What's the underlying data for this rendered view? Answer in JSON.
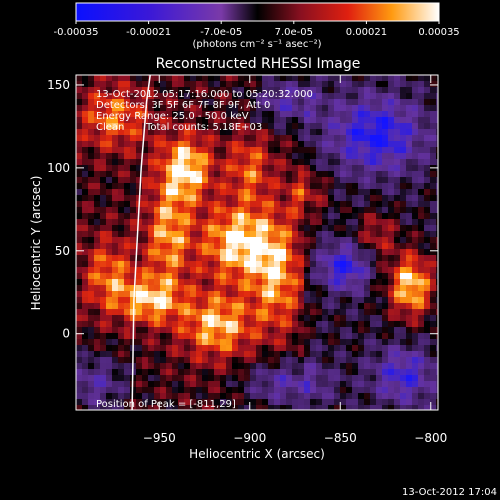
{
  "colorbar": {
    "ticks": [
      "-0.00035",
      "-0.00021",
      "-7.0e-05",
      "7.0e-05",
      "0.00021",
      "0.00035"
    ],
    "tick_values": [
      -0.00035,
      -0.00021,
      -7e-05,
      7e-05,
      0.00021,
      0.00035
    ],
    "range": [
      -0.00035,
      0.00035
    ],
    "unit_label": "(photons cm⁻² s⁻¹ asec⁻²)"
  },
  "image_info": {
    "time_range": "13-Oct-2012 05:17:16.000 to 05:20:32.000",
    "detectors": "Detectors: 3F 5F 6F 7F 8F 9F, Att 0",
    "energy": "Energy Range: 25.0 - 50.0 keV",
    "method": "Clean",
    "counts": "Total counts: 5.18E+03",
    "peak": "Position of Peak = [-811,29]"
  },
  "footer": {
    "timestamp": "13-Oct-2012 17:04"
  },
  "colors": {
    "low": "#1a10ff",
    "mid_low": "#5e2ea0",
    "zero": "#000000",
    "mid_high": "#c8281a",
    "high": "#ffffff"
  },
  "chart_data": {
    "type": "heatmap",
    "title": "Reconstructed RHESSI Image",
    "xlabel": "Heliocentric X (arcsec)",
    "ylabel": "Heliocentric Y (arcsec)",
    "xlim": [
      -996,
      -796
    ],
    "ylim": [
      -46,
      156
    ],
    "xticks": [
      -950,
      -900,
      -850,
      -800
    ],
    "yticks": [
      0,
      50,
      100,
      150
    ],
    "limb_line": [
      [
        -965,
        -46
      ],
      [
        -964,
        20
      ],
      [
        -962,
        60
      ],
      [
        -960,
        100
      ],
      [
        -957,
        140
      ],
      [
        -955,
        156
      ]
    ],
    "blobs": [
      {
        "x": -955,
        "y": 20,
        "sx": 12,
        "sy": 10,
        "a": 0.00026
      },
      {
        "x": -945,
        "y": 60,
        "sx": 9,
        "sy": 22,
        "a": 0.00024
      },
      {
        "x": -935,
        "y": 100,
        "sx": 10,
        "sy": 14,
        "a": 0.0003
      },
      {
        "x": -918,
        "y": 5,
        "sx": 14,
        "sy": 14,
        "a": 0.00027
      },
      {
        "x": -907,
        "y": 55,
        "sx": 14,
        "sy": 16,
        "a": 0.0003
      },
      {
        "x": -900,
        "y": 100,
        "sx": 9,
        "sy": 15,
        "a": 0.00018
      },
      {
        "x": -885,
        "y": 35,
        "sx": 10,
        "sy": 24,
        "a": 0.00024
      },
      {
        "x": -868,
        "y": 85,
        "sx": 8,
        "sy": 10,
        "a": 0.00016
      },
      {
        "x": -811,
        "y": 29,
        "sx": 9,
        "sy": 14,
        "a": 0.00035
      },
      {
        "x": -830,
        "y": 60,
        "sx": 8,
        "sy": 10,
        "a": 0.00016
      },
      {
        "x": -975,
        "y": 130,
        "sx": 14,
        "sy": 14,
        "a": 0.0002
      },
      {
        "x": -978,
        "y": 35,
        "sx": 10,
        "sy": 16,
        "a": 0.0002
      },
      {
        "x": -848,
        "y": 40,
        "sx": 10,
        "sy": 10,
        "a": -0.00028
      },
      {
        "x": -830,
        "y": 120,
        "sx": 18,
        "sy": 16,
        "a": -0.0003
      },
      {
        "x": -880,
        "y": 140,
        "sx": 12,
        "sy": 10,
        "a": -0.00022
      },
      {
        "x": -985,
        "y": -30,
        "sx": 12,
        "sy": 12,
        "a": -0.0002
      },
      {
        "x": -880,
        "y": -30,
        "sx": 16,
        "sy": 10,
        "a": -0.00022
      },
      {
        "x": -815,
        "y": -25,
        "sx": 12,
        "sy": 12,
        "a": -0.00024
      }
    ]
  }
}
